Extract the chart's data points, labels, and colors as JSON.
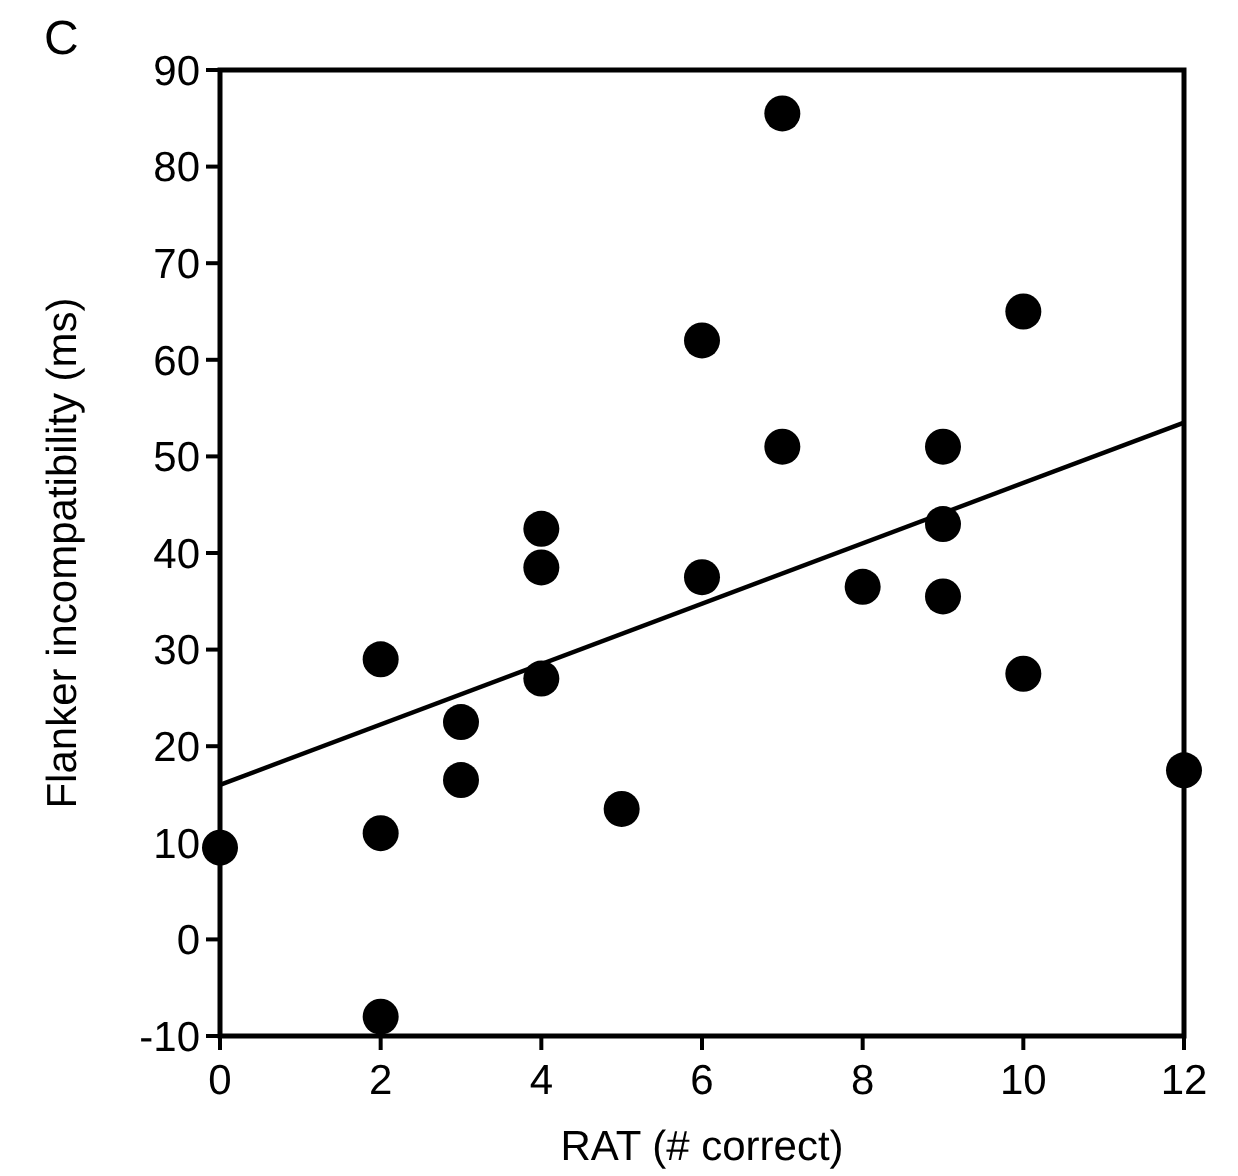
{
  "chart_data": {
    "type": "scatter",
    "title": "C",
    "xlabel": "RAT (# correct)",
    "ylabel": "Flanker incompatibility (ms)",
    "xlim": [
      0,
      12
    ],
    "xticks": [
      0,
      2,
      4,
      6,
      8,
      10,
      12
    ],
    "ylim": [
      -10,
      90
    ],
    "yticks": [
      -10,
      0,
      10,
      20,
      30,
      40,
      50,
      60,
      70,
      80,
      90
    ],
    "grid": false,
    "series": [
      {
        "marker": "circle",
        "color": "#000000",
        "x": [
          0,
          2,
          2,
          2,
          3,
          3,
          4,
          4,
          4,
          5,
          6,
          6,
          7,
          7,
          8,
          9,
          9,
          9,
          10,
          10,
          12
        ],
        "values": [
          9.5,
          29,
          11,
          -8,
          22.5,
          16.5,
          42.5,
          38.5,
          27,
          13.5,
          62,
          37.5,
          85.5,
          51,
          36.5,
          51,
          43,
          35.5,
          65,
          27.5,
          17.5
        ]
      },
      {
        "type": "line",
        "color": "#000000",
        "x": [
          0,
          12
        ],
        "values": [
          16,
          53.5
        ]
      }
    ]
  }
}
